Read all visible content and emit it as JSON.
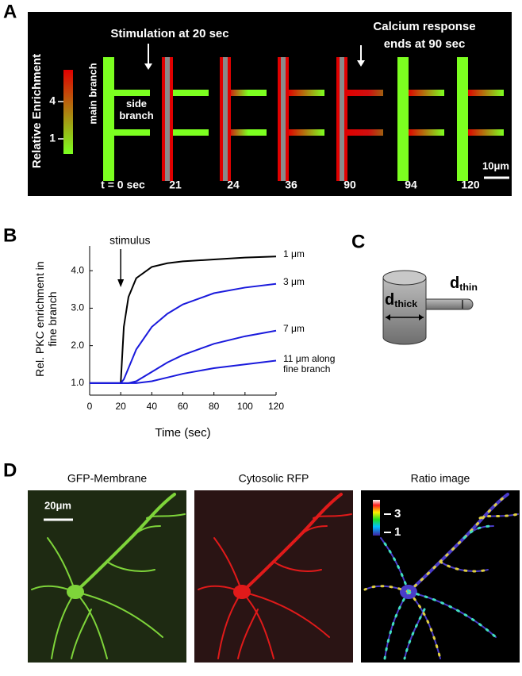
{
  "panel_a": {
    "label": "A",
    "stimulation": "Stimulation at 20 sec",
    "response_line1": "Calcium response",
    "response_line2": "ends at 90 sec",
    "colorbar_title": "Relative Enrichment",
    "colorbar_ticks": [
      "4",
      "1"
    ],
    "main_branch": "main branch",
    "side_branch": "side branch",
    "times": [
      "t = 0 sec",
      "21",
      "24",
      "36",
      "90",
      "94",
      "120"
    ],
    "scale_bar": "10μm"
  },
  "chart_data": {
    "type": "line",
    "panel": "B",
    "x_label": "Time (sec)",
    "y_label": "Rel. PKC enrichment in fine branch",
    "annotations": [
      {
        "text": "stimulus",
        "x": 20
      }
    ],
    "x": [
      0,
      10,
      20,
      22,
      25,
      30,
      40,
      50,
      60,
      80,
      100,
      120
    ],
    "series": [
      {
        "name": "1 μm",
        "color": "#000000",
        "values": [
          1,
          1,
          1,
          2.5,
          3.3,
          3.8,
          4.1,
          4.2,
          4.25,
          4.3,
          4.35,
          4.38
        ]
      },
      {
        "name": "3 μm",
        "color": "#1a1adc",
        "values": [
          1,
          1,
          1,
          1.1,
          1.4,
          1.9,
          2.5,
          2.85,
          3.1,
          3.4,
          3.55,
          3.65
        ]
      },
      {
        "name": "7 μm",
        "color": "#1a1adc",
        "values": [
          1,
          1,
          1,
          1,
          1,
          1.05,
          1.3,
          1.55,
          1.75,
          2.05,
          2.25,
          2.4
        ]
      },
      {
        "name": "11 μm along fine branch",
        "color": "#1a1adc",
        "values": [
          1,
          1,
          1,
          1,
          1,
          1,
          1.05,
          1.15,
          1.25,
          1.4,
          1.5,
          1.6
        ]
      }
    ],
    "xlim": [
      0,
      120
    ],
    "xticks": [
      0,
      20,
      40,
      60,
      80,
      100,
      120
    ],
    "ylim": [
      0.68,
      4.66
    ],
    "yticks": [
      {
        "value": 1,
        "label": "1.0"
      },
      {
        "value": 2,
        "label": "2.0"
      },
      {
        "value": 3,
        "label": "3.0"
      },
      {
        "value": 4,
        "label": "4.0"
      }
    ]
  },
  "panel_c": {
    "label": "C",
    "d_thick": {
      "symbol": "d",
      "subscript": "thick"
    },
    "d_thin": {
      "symbol": "d",
      "subscript": "thin"
    }
  },
  "panel_d": {
    "label": "D",
    "titles": [
      "GFP-Membrane",
      "Cytosolic RFP",
      "Ratio image"
    ],
    "scale_bar": "20μm",
    "ratio_ticks": [
      "3",
      "1"
    ]
  }
}
